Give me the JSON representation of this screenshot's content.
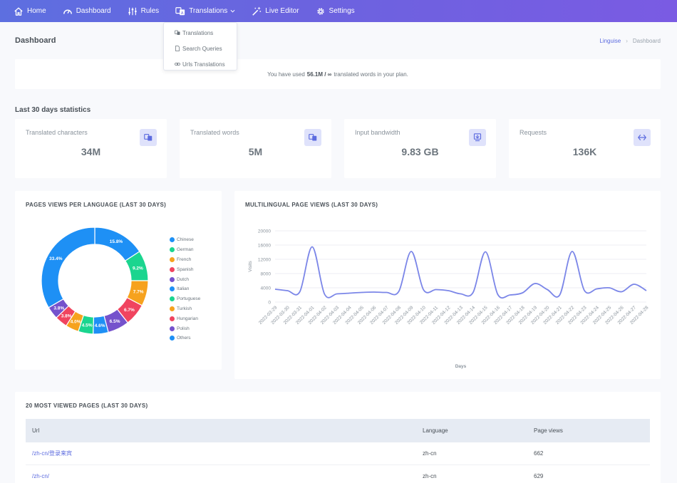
{
  "nav": {
    "items": [
      {
        "label": "Home",
        "icon": "home-icon"
      },
      {
        "label": "Dashboard",
        "icon": "speedometer-icon"
      },
      {
        "label": "Rules",
        "icon": "sliders-icon"
      },
      {
        "label": "Translations",
        "icon": "translate-icon"
      },
      {
        "label": "Live Editor",
        "icon": "magic-wand-icon"
      },
      {
        "label": "Settings",
        "icon": "gear-icon"
      }
    ],
    "gradient": [
      "#5d6fe0",
      "#7a5be3"
    ]
  },
  "dropdown": {
    "items": [
      {
        "label": "Translations",
        "icon": "translate-icon"
      },
      {
        "label": "Search Queries",
        "icon": "document-icon"
      },
      {
        "label": "Urls Translations",
        "icon": "link-icon"
      }
    ]
  },
  "header": {
    "title": "Dashboard",
    "breadcrumb": {
      "link": "Linguise",
      "separator": "›",
      "current": "Dashboard"
    }
  },
  "usage": {
    "prefix": "You have used",
    "amount": "56.1M / ∞",
    "suffix": "translated words in your plan."
  },
  "stats_title": "Last 30 days statistics",
  "stats": [
    {
      "label": "Translated characters",
      "value": "34M",
      "icon": "translate-icon"
    },
    {
      "label": "Translated words",
      "value": "5M",
      "icon": "translate-icon"
    },
    {
      "label": "Input bandwidth",
      "value": "9.83 GB",
      "icon": "download-icon"
    },
    {
      "label": "Requests",
      "value": "136K",
      "icon": "arrows-icon"
    }
  ],
  "donut_title": "PAGES VIEWS PER LANGUAGE (LAST 30 DAYS)",
  "line_title": "MULTILINGUAL PAGE VIEWS (LAST 30 DAYS)",
  "table": {
    "title": "20 MOST VIEWED PAGES (LAST 30 DAYS)",
    "columns": [
      "Url",
      "Language",
      "Page views"
    ],
    "rows": [
      {
        "url": "/zh-cn/登录来宾",
        "language": "zh-cn",
        "views": "662"
      },
      {
        "url": "/zh-cn/",
        "language": "zh-cn",
        "views": "629"
      }
    ]
  },
  "chart_data": [
    {
      "type": "pie",
      "title": "PAGES VIEWS PER LANGUAGE (LAST 30 DAYS)",
      "donut": true,
      "legend_position": "right",
      "categories": [
        "Chinese",
        "German",
        "French",
        "Spanish",
        "Dutch",
        "Italian",
        "Portuguese",
        "Turkish",
        "Hungarian",
        "Polish",
        "Others"
      ],
      "values": [
        15.8,
        9.2,
        7.7,
        6.7,
        6.5,
        4.6,
        4.5,
        4.0,
        3.8,
        3.8,
        33.4
      ],
      "labels": [
        "15.8%",
        "9.2%",
        "7.7%",
        "6.7%",
        "6.5%",
        "4.6%",
        "4.5%",
        "4.0%",
        "3.8%",
        "3.8%",
        "33.4%"
      ],
      "colors": [
        "#1e90f5",
        "#1bd58f",
        "#f6a21e",
        "#f0445f",
        "#7552cc",
        "#1e90f5",
        "#1bd58f",
        "#f6a21e",
        "#f0445f",
        "#7552cc",
        "#1e90f5"
      ]
    },
    {
      "type": "line",
      "title": "MULTILINGUAL PAGE VIEWS (LAST 30 DAYS)",
      "xlabel": "Days",
      "ylabel": "Visits",
      "ylim": [
        0,
        20000
      ],
      "yticks": [
        0,
        4000,
        8000,
        12000,
        16000,
        20000
      ],
      "grid": true,
      "color": "#7b86e8",
      "x": [
        "2022-03-29",
        "2022-03-30",
        "2022-03-31",
        "2022-04-01",
        "2022-04-02",
        "2022-04-03",
        "2022-04-04",
        "2022-04-05",
        "2022-04-06",
        "2022-04-07",
        "2022-04-08",
        "2022-04-09",
        "2022-04-10",
        "2022-04-11",
        "2022-04-12",
        "2022-04-13",
        "2022-04-14",
        "2022-04-15",
        "2022-04-16",
        "2022-04-17",
        "2022-04-18",
        "2022-04-19",
        "2022-04-20",
        "2022-04-21",
        "2022-04-22",
        "2022-04-23",
        "2022-04-24",
        "2022-04-25",
        "2022-04-26",
        "2022-04-27",
        "2022-04-28"
      ],
      "values": [
        3600,
        3200,
        2900,
        15500,
        2200,
        2300,
        2500,
        2700,
        2800,
        2700,
        3000,
        14200,
        3400,
        3500,
        3200,
        2300,
        2700,
        14100,
        2100,
        2000,
        2600,
        5200,
        3500,
        2000,
        14200,
        3200,
        3700,
        4000,
        2900,
        5000,
        3200
      ]
    }
  ]
}
